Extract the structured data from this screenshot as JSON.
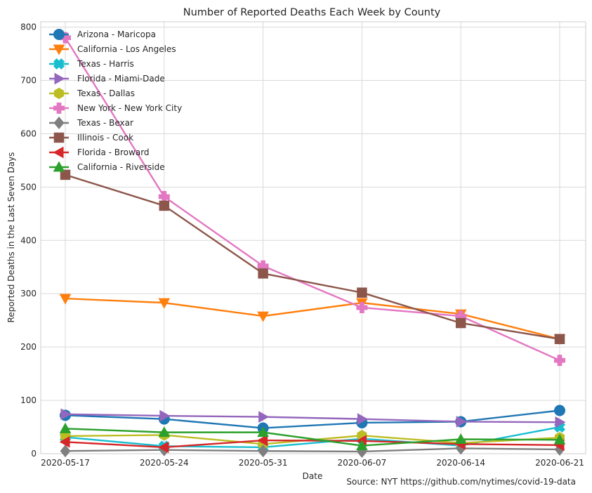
{
  "chart_data": {
    "type": "line",
    "title": "Number of Reported Deaths Each Week by County",
    "xlabel": "Date",
    "ylabel": "Reported Deaths in the Last Seven Days",
    "source": "Source: NYT https://github.com/nytimes/covid-19-data",
    "x": [
      "2020-05-17",
      "2020-05-24",
      "2020-05-31",
      "2020-06-07",
      "2020-06-14",
      "2020-06-21"
    ],
    "ylim": [
      0,
      810
    ],
    "yticks": [
      0,
      100,
      200,
      300,
      400,
      500,
      600,
      700,
      800
    ],
    "grid": true,
    "legend_position": "top-left",
    "series": [
      {
        "name": "Arizona - Maricopa",
        "color": "#1f77b4",
        "marker": "circle",
        "values": [
          72,
          65,
          48,
          58,
          60,
          81
        ]
      },
      {
        "name": "California - Los Angeles",
        "color": "#ff7f0e",
        "marker": "triangle-down",
        "values": [
          291,
          283,
          258,
          283,
          262,
          215
        ]
      },
      {
        "name": "Texas - Harris",
        "color": "#17becf",
        "marker": "x-filled",
        "values": [
          31,
          14,
          12,
          28,
          15,
          50
        ]
      },
      {
        "name": "Florida - Miami-Dade",
        "color": "#9467bd",
        "marker": "triangle-right",
        "values": [
          74,
          71,
          69,
          65,
          60,
          59
        ]
      },
      {
        "name": "Texas - Dallas",
        "color": "#bcbd22",
        "marker": "hexagon",
        "values": [
          33,
          35,
          18,
          34,
          20,
          30
        ]
      },
      {
        "name": "New York - New York City",
        "color": "#e377c2",
        "marker": "plus-filled",
        "values": [
          780,
          482,
          352,
          274,
          258,
          175
        ]
      },
      {
        "name": "Texas - Bexar",
        "color": "#7f7f7f",
        "marker": "diamond",
        "values": [
          5,
          7,
          5,
          4,
          10,
          8
        ]
      },
      {
        "name": "Illinois - Cook",
        "color": "#8c564b",
        "marker": "square",
        "values": [
          523,
          465,
          338,
          302,
          245,
          215
        ]
      },
      {
        "name": "Florida - Broward",
        "color": "#d62728",
        "marker": "triangle-left",
        "values": [
          22,
          12,
          25,
          24,
          18,
          16
        ]
      },
      {
        "name": "California - Riverside",
        "color": "#2ca02c",
        "marker": "triangle-up",
        "values": [
          47,
          40,
          40,
          15,
          27,
          26
        ]
      }
    ]
  }
}
